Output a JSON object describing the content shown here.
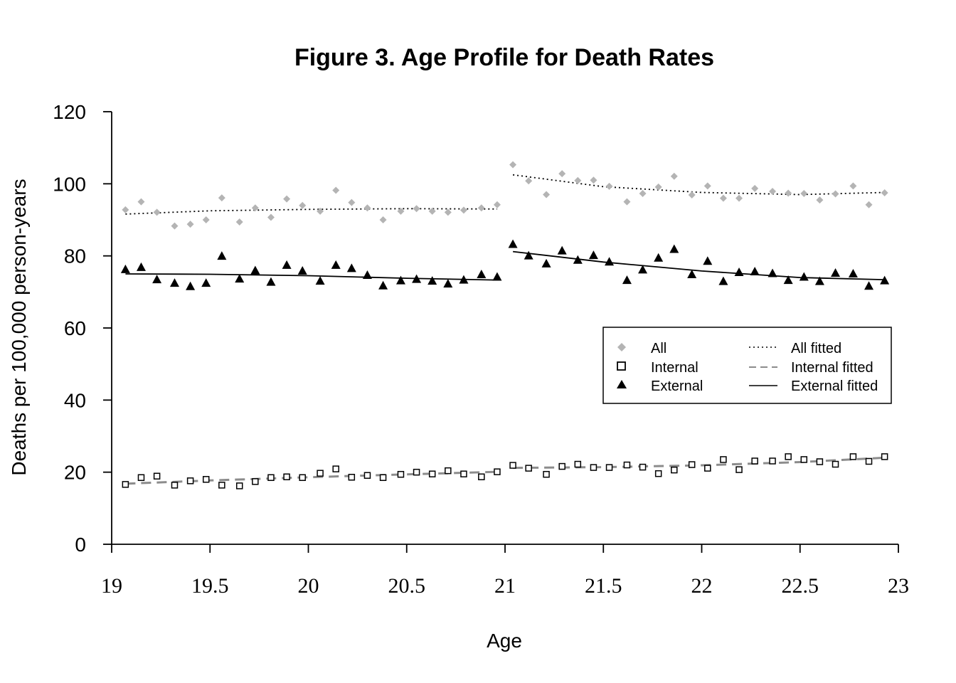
{
  "chart_data": {
    "type": "scatter",
    "title": "Figure 3. Age Profile for Death Rates",
    "xlabel": "Age",
    "ylabel": "Deaths per 100,000 person-years",
    "xlim": [
      19,
      23
    ],
    "ylim": [
      0,
      120
    ],
    "xticks": [
      "19",
      "19.5",
      "20",
      "20.5",
      "21",
      "21.5",
      "22",
      "22.5",
      "23"
    ],
    "yticks": [
      "0",
      "20",
      "40",
      "60",
      "80",
      "100",
      "120"
    ],
    "grid": false,
    "legend_position": "right-middle",
    "x": [
      19.07,
      19.15,
      19.23,
      19.32,
      19.4,
      19.48,
      19.56,
      19.65,
      19.73,
      19.81,
      19.89,
      19.97,
      20.06,
      20.14,
      20.22,
      20.3,
      20.38,
      20.47,
      20.55,
      20.63,
      20.71,
      20.79,
      20.88,
      20.96,
      21.04,
      21.12,
      21.21,
      21.29,
      21.37,
      21.45,
      21.53,
      21.62,
      21.7,
      21.78,
      21.86,
      21.95,
      22.03,
      22.11,
      22.19,
      22.27,
      22.36,
      22.44,
      22.52,
      22.6,
      22.68,
      22.77,
      22.85,
      22.93
    ],
    "series": [
      {
        "name": "All",
        "marker": "diamond",
        "color": "#b4b4b4",
        "values": [
          92.8,
          95.0,
          92.1,
          88.3,
          88.8,
          90.0,
          96.1,
          89.4,
          93.3,
          90.7,
          95.8,
          94.0,
          92.4,
          98.2,
          94.8,
          93.3,
          90.0,
          92.4,
          93.1,
          92.4,
          92.1,
          92.7,
          93.3,
          94.2,
          105.3,
          100.8,
          97.0,
          102.8,
          100.9,
          101.0,
          99.3,
          95.0,
          97.3,
          99.1,
          102.1,
          96.9,
          99.4,
          96.0,
          96.0,
          98.7,
          97.9,
          97.4,
          97.3,
          95.5,
          97.2,
          99.4,
          94.2,
          97.5
        ]
      },
      {
        "name": "Internal",
        "marker": "open-square",
        "color": "#000000",
        "values": [
          16.6,
          18.5,
          18.9,
          16.4,
          17.6,
          18.0,
          16.4,
          16.2,
          17.4,
          18.5,
          18.7,
          18.5,
          19.7,
          20.9,
          18.6,
          19.1,
          18.5,
          19.4,
          20.0,
          19.5,
          20.4,
          19.5,
          18.7,
          20.1,
          21.9,
          21.1,
          19.4,
          21.6,
          22.2,
          21.3,
          21.3,
          22.0,
          21.4,
          19.6,
          20.6,
          22.1,
          21.1,
          23.5,
          20.7,
          23.1,
          23.1,
          24.3,
          23.5,
          22.9,
          22.2,
          24.3,
          23.0,
          24.3
        ]
      },
      {
        "name": "External",
        "marker": "filled-triangle",
        "color": "#000000",
        "values": [
          76.2,
          76.8,
          73.4,
          72.4,
          71.5,
          72.4,
          79.9,
          73.6,
          75.9,
          72.7,
          77.4,
          75.8,
          73.0,
          77.4,
          76.5,
          74.6,
          71.7,
          73.1,
          73.5,
          73.0,
          72.2,
          73.3,
          74.8,
          74.1,
          83.2,
          80.0,
          77.8,
          81.4,
          78.8,
          80.1,
          78.3,
          73.2,
          76.1,
          79.4,
          81.8,
          74.8,
          78.5,
          72.9,
          75.4,
          75.6,
          75.1,
          73.2,
          74.1,
          72.9,
          75.2,
          75.0,
          71.6,
          73.1
        ]
      }
    ],
    "fitted": [
      {
        "name": "All fitted",
        "style": "dotted",
        "color": "#000000",
        "segments": [
          {
            "x": [
              19.07,
              19.5,
              20.0,
              20.5,
              20.96
            ],
            "y": [
              91.6,
              92.5,
              92.9,
              93.1,
              93.0
            ]
          },
          {
            "x": [
              21.04,
              21.5,
              22.0,
              22.5,
              22.93
            ],
            "y": [
              102.5,
              99.2,
              97.6,
              97.0,
              97.6
            ]
          }
        ]
      },
      {
        "name": "Internal fitted",
        "style": "dashed",
        "color": "#8c8c8c",
        "segments": [
          {
            "x": [
              19.07,
              19.5,
              20.0,
              20.5,
              20.96
            ],
            "y": [
              16.8,
              17.7,
              18.6,
              19.4,
              20.1
            ]
          },
          {
            "x": [
              21.04,
              21.5,
              22.0,
              22.5,
              22.93
            ],
            "y": [
              21.2,
              21.4,
              21.9,
              22.8,
              24.0
            ]
          }
        ]
      },
      {
        "name": "External fitted",
        "style": "solid",
        "color": "#000000",
        "segments": [
          {
            "x": [
              19.07,
              19.5,
              20.0,
              20.5,
              20.96
            ],
            "y": [
              75.0,
              74.9,
              74.5,
              73.8,
              73.3
            ]
          },
          {
            "x": [
              21.04,
              21.5,
              22.0,
              22.5,
              22.93
            ],
            "y": [
              81.2,
              78.3,
              75.8,
              74.0,
              73.4
            ]
          }
        ]
      }
    ]
  }
}
